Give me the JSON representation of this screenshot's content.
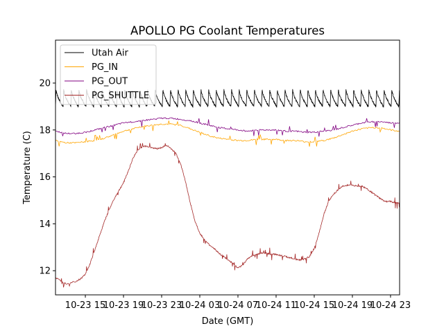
{
  "chart_data": {
    "type": "line",
    "title": "APOLLO PG Coolant Temperatures",
    "xlabel": "Date (GMT)",
    "ylabel": "Temperature (C)",
    "x_units": "hours since 10-23 00:00 GMT",
    "xlim": [
      11.87,
      47.95
    ],
    "ylim": [
      10.97,
      21.83
    ],
    "grid": false,
    "legend_position": "top-left",
    "x_ticks": [
      {
        "value": 15,
        "label": "10-23 15"
      },
      {
        "value": 19,
        "label": "10-23 19"
      },
      {
        "value": 23,
        "label": "10-23 23"
      },
      {
        "value": 27,
        "label": "10-24 03"
      },
      {
        "value": 31,
        "label": "10-24 07"
      },
      {
        "value": 35,
        "label": "10-24 11"
      },
      {
        "value": 39,
        "label": "10-24 15"
      },
      {
        "value": 43,
        "label": "10-24 19"
      },
      {
        "value": 47,
        "label": "10-24 23"
      }
    ],
    "y_ticks": [
      {
        "value": 12,
        "label": "12"
      },
      {
        "value": 14,
        "label": "14"
      },
      {
        "value": 16,
        "label": "16"
      },
      {
        "value": 18,
        "label": "18"
      },
      {
        "value": 20,
        "label": "20"
      }
    ],
    "series": [
      {
        "name": "Utah Air",
        "color": "#000000",
        "pattern": "sawtooth",
        "period_hours": 0.8,
        "low": 19.0,
        "high": 19.75,
        "x_start": 11.87,
        "x_end": 47.95
      },
      {
        "name": "PG_IN",
        "color": "#ffa500",
        "x": [
          11.87,
          13,
          14,
          15,
          16,
          17,
          18,
          19,
          20,
          21,
          22,
          23,
          24,
          25,
          26,
          27,
          28,
          29,
          30,
          31,
          32,
          33,
          34,
          35,
          36,
          37,
          38,
          39,
          40,
          41,
          42,
          43,
          44,
          45,
          46,
          47,
          47.95
        ],
        "values": [
          17.55,
          17.45,
          17.45,
          17.5,
          17.55,
          17.65,
          17.8,
          17.95,
          18.05,
          18.15,
          18.2,
          18.25,
          18.25,
          18.2,
          18.05,
          17.9,
          17.75,
          17.65,
          17.6,
          17.55,
          17.55,
          17.6,
          17.6,
          17.6,
          17.55,
          17.55,
          17.5,
          17.5,
          17.55,
          17.65,
          17.8,
          17.95,
          18.05,
          18.1,
          18.1,
          18.0,
          17.95
        ]
      },
      {
        "name": "PG_OUT",
        "color": "#800080",
        "x": [
          11.87,
          13,
          14,
          15,
          16,
          17,
          18,
          19,
          20,
          21,
          22,
          23,
          24,
          25,
          26,
          27,
          28,
          29,
          30,
          31,
          32,
          33,
          34,
          35,
          36,
          37,
          38,
          39,
          40,
          41,
          42,
          43,
          44,
          45,
          46,
          47,
          47.95
        ],
        "values": [
          17.95,
          17.85,
          17.85,
          17.9,
          18.0,
          18.1,
          18.2,
          18.3,
          18.35,
          18.4,
          18.45,
          18.5,
          18.5,
          18.45,
          18.4,
          18.3,
          18.2,
          18.1,
          18.05,
          18.0,
          17.95,
          18.0,
          18.0,
          18.0,
          17.95,
          17.95,
          17.9,
          17.9,
          17.95,
          18.0,
          18.1,
          18.2,
          18.3,
          18.35,
          18.35,
          18.3,
          18.3
        ]
      },
      {
        "name": "PG_SHUTTLE",
        "color": "#a52a2a",
        "x": [
          11.87,
          12.5,
          13,
          14,
          14.5,
          15,
          15.5,
          16,
          16.5,
          17,
          17.5,
          18,
          18.5,
          19,
          19.5,
          20,
          20.5,
          21,
          21.5,
          22,
          22.5,
          23,
          23.5,
          24,
          24.5,
          25,
          25.5,
          26,
          26.5,
          27,
          27.5,
          28,
          28.5,
          29,
          29.5,
          30,
          30.5,
          31,
          31.5,
          32,
          32.5,
          33,
          33.5,
          34,
          34.5,
          35,
          35.5,
          36,
          36.5,
          37,
          37.5,
          38,
          38.5,
          39,
          39.5,
          40,
          40.5,
          41,
          41.5,
          42,
          42.5,
          43,
          43.5,
          44,
          44.5,
          45,
          45.5,
          46,
          46.5,
          47,
          47.5,
          47.95
        ],
        "values": [
          11.7,
          11.55,
          11.45,
          11.55,
          11.65,
          11.85,
          12.3,
          12.9,
          13.5,
          14.1,
          14.6,
          15.05,
          15.4,
          15.75,
          16.25,
          16.8,
          17.15,
          17.3,
          17.3,
          17.25,
          17.2,
          17.25,
          17.35,
          17.2,
          17.0,
          16.55,
          15.8,
          14.9,
          14.1,
          13.6,
          13.3,
          13.1,
          12.95,
          12.75,
          12.6,
          12.45,
          12.3,
          12.1,
          12.25,
          12.5,
          12.65,
          12.7,
          12.75,
          12.75,
          12.7,
          12.7,
          12.65,
          12.6,
          12.55,
          12.5,
          12.45,
          12.5,
          12.6,
          12.95,
          13.6,
          14.4,
          14.95,
          15.25,
          15.45,
          15.6,
          15.65,
          15.65,
          15.6,
          15.6,
          15.5,
          15.35,
          15.2,
          15.05,
          14.95,
          14.95,
          14.9,
          14.9
        ]
      }
    ]
  }
}
